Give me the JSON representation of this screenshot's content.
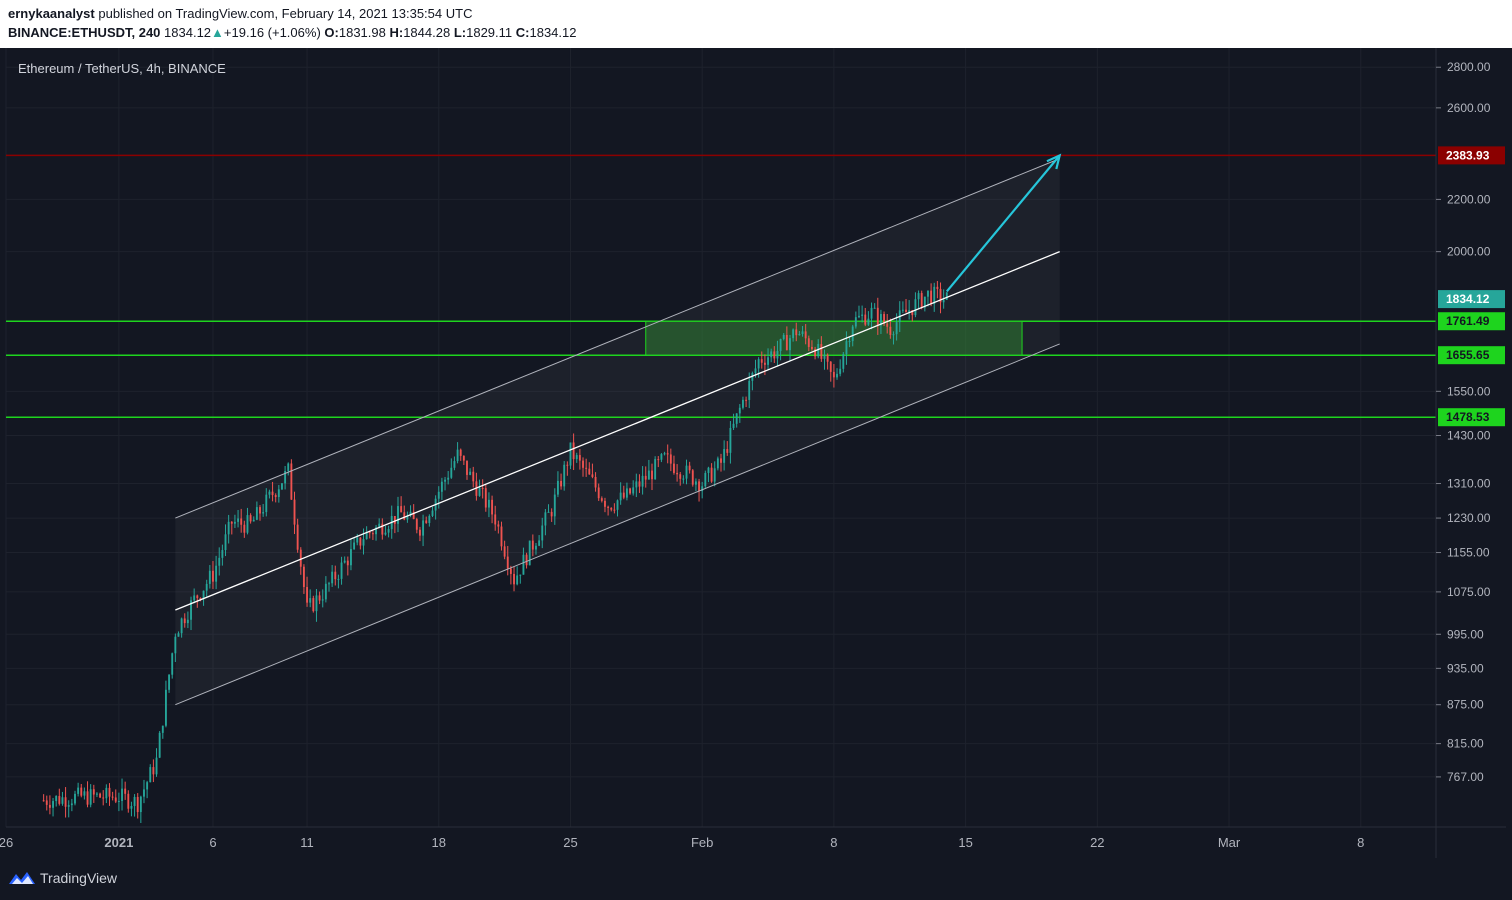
{
  "header": {
    "author": "ernykaanalyst",
    "published_text": "published on TradingView.com, February 14, 2021 13:35:54 UTC",
    "symbol": "BINANCE:ETHUSDT, 240",
    "last": "1834.12",
    "change_arrow": "▲",
    "change": "+19.16 (+1.06%)",
    "o_label": "O:",
    "o": "1831.98",
    "h_label": "H:",
    "h": "1844.28",
    "l_label": "L:",
    "l": "1829.11",
    "c_label": "C:",
    "c": "1834.12"
  },
  "footer": {
    "brand": "TradingView",
    "logo_icon": "tradingview-logo-icon"
  },
  "colors": {
    "background": "#131722",
    "up": "#26a69a",
    "down": "#ef5350",
    "level_line": "#1ed41e",
    "resistance": "#8b0000",
    "arrow": "#26c6da",
    "channel": "#cfcfcf"
  },
  "chart_data": {
    "type": "candlestick",
    "title": "Ethereum / TetherUS, 4h, BINANCE",
    "x_tick_labels": [
      {
        "date": "2020-12-26",
        "label": "26"
      },
      {
        "date": "2021-01-01",
        "label": "2021"
      },
      {
        "date": "2021-01-06",
        "label": "6"
      },
      {
        "date": "2021-01-11",
        "label": "11"
      },
      {
        "date": "2021-01-18",
        "label": "18"
      },
      {
        "date": "2021-01-25",
        "label": "25"
      },
      {
        "date": "2021-02-01",
        "label": "Feb"
      },
      {
        "date": "2021-02-08",
        "label": "8"
      },
      {
        "date": "2021-02-15",
        "label": "15"
      },
      {
        "date": "2021-02-22",
        "label": "22"
      },
      {
        "date": "2021-03-01",
        "label": "Mar"
      },
      {
        "date": "2021-03-08",
        "label": "8"
      }
    ],
    "xlim": [
      "2020-12-26",
      "2021-03-12"
    ],
    "y_scale": "log",
    "ylim": [
      700,
      2900
    ],
    "y_ticks": [
      "2800.00",
      "2600.00",
      "2200.00",
      "2000.00",
      "1550.00",
      "1430.00",
      "1310.00",
      "1230.00",
      "1155.00",
      "1075.00",
      "995.00",
      "935.00",
      "875.00",
      "815.00",
      "767.00"
    ],
    "levels": [
      {
        "value": "2383.93",
        "role": "resistance"
      },
      {
        "value": "1761.49",
        "role": "zone-top"
      },
      {
        "value": "1655.65",
        "role": "zone-bottom"
      },
      {
        "value": "1478.53",
        "role": "support"
      }
    ],
    "last_price": "1834.12",
    "channel": {
      "start": "2021-01-04",
      "end": "2021-02-20",
      "upper": [
        1230,
        2370
      ],
      "middle": [
        1040,
        2000
      ],
      "lower": [
        875,
        1690
      ]
    },
    "zone": {
      "start": "2021-01-29",
      "end": "2021-02-18",
      "low": 1655.65,
      "high": 1761.49
    },
    "target_arrow": {
      "from": [
        "2021-02-14",
        1860
      ],
      "to": [
        "2021-02-20",
        2383.93
      ]
    },
    "price_path": [
      [
        "2020-12-28",
        735
      ],
      [
        "2020-12-30",
        740
      ],
      [
        "2021-01-01",
        740
      ],
      [
        "2021-01-02",
        732
      ],
      [
        "2021-01-03",
        790
      ],
      [
        "2021-01-04",
        1000
      ],
      [
        "2021-01-05",
        1060
      ],
      [
        "2021-01-06",
        1110
      ],
      [
        "2021-01-07",
        1220
      ],
      [
        "2021-01-08",
        1215
      ],
      [
        "2021-01-10",
        1340
      ],
      [
        "2021-01-11",
        1040
      ],
      [
        "2021-01-12",
        1080
      ],
      [
        "2021-01-14",
        1190
      ],
      [
        "2021-01-16",
        1240
      ],
      [
        "2021-01-17",
        1210
      ],
      [
        "2021-01-19",
        1380
      ],
      [
        "2021-01-21",
        1230
      ],
      [
        "2021-01-22",
        1100
      ],
      [
        "2021-01-24",
        1250
      ],
      [
        "2021-01-25",
        1390
      ],
      [
        "2021-01-27",
        1260
      ],
      [
        "2021-01-28",
        1280
      ],
      [
        "2021-01-30",
        1370
      ],
      [
        "2021-02-01",
        1310
      ],
      [
        "2021-02-02",
        1360
      ],
      [
        "2021-02-03",
        1500
      ],
      [
        "2021-02-04",
        1640
      ],
      [
        "2021-02-05",
        1670
      ],
      [
        "2021-02-06",
        1730
      ],
      [
        "2021-02-07",
        1680
      ],
      [
        "2021-02-08",
        1580
      ],
      [
        "2021-02-09",
        1760
      ],
      [
        "2021-02-10",
        1790
      ],
      [
        "2021-02-11",
        1740
      ],
      [
        "2021-02-12",
        1800
      ],
      [
        "2021-02-13",
        1850
      ],
      [
        "2021-02-14",
        1834.12
      ]
    ]
  }
}
